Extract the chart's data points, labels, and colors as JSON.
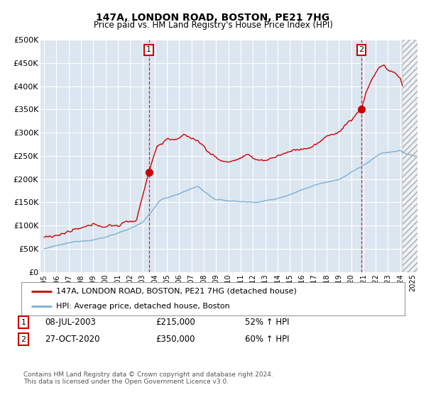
{
  "title": "147A, LONDON ROAD, BOSTON, PE21 7HG",
  "subtitle": "Price paid vs. HM Land Registry's House Price Index (HPI)",
  "ylim": [
    0,
    500000
  ],
  "yticks": [
    0,
    50000,
    100000,
    150000,
    200000,
    250000,
    300000,
    350000,
    400000,
    450000,
    500000
  ],
  "ytick_labels": [
    "£0",
    "£50K",
    "£100K",
    "£150K",
    "£200K",
    "£250K",
    "£300K",
    "£350K",
    "£400K",
    "£450K",
    "£500K"
  ],
  "xlim_start": 1994.7,
  "xlim_end": 2025.4,
  "background_color": "#dce6f1",
  "fig_bg_color": "#ffffff",
  "hpi_line_color": "#7bafd4",
  "price_line_color": "#cc0000",
  "sale1_x": 2003.52,
  "sale1_y": 215000,
  "sale2_x": 2020.83,
  "sale2_y": 350000,
  "legend_label1": "147A, LONDON ROAD, BOSTON, PE21 7HG (detached house)",
  "legend_label2": "HPI: Average price, detached house, Boston",
  "annotation1_date": "08-JUL-2003",
  "annotation1_price": "£215,000",
  "annotation1_hpi": "52% ↑ HPI",
  "annotation2_date": "27-OCT-2020",
  "annotation2_price": "£350,000",
  "annotation2_hpi": "60% ↑ HPI",
  "footer": "Contains HM Land Registry data © Crown copyright and database right 2024.\nThis data is licensed under the Open Government Licence v3.0.",
  "hatched_region_start": 2024.17,
  "hatched_region_end": 2025.5
}
